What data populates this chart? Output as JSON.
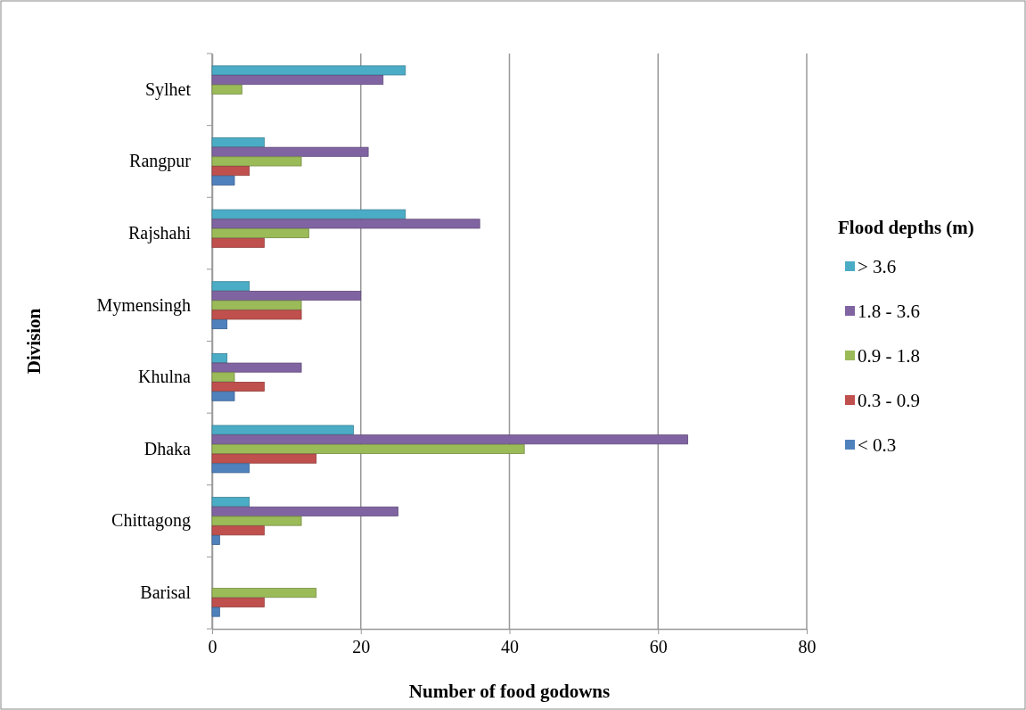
{
  "chart_data": {
    "type": "bar",
    "orientation": "horizontal",
    "xlabel": "Number of food godowns",
    "ylabel": "Division",
    "legend_title": "Flood depths (m)",
    "categories": [
      "Sylhet",
      "Rangpur",
      "Rajshahi",
      "Mymensingh",
      "Khulna",
      "Dhaka",
      "Chittagong",
      "Barisal"
    ],
    "series": [
      {
        "name": "> 3.6",
        "color": "#4bacc6",
        "values": [
          26,
          7,
          26,
          5,
          2,
          19,
          5,
          0
        ]
      },
      {
        "name": "1.8 - 3.6",
        "color": "#8064a2",
        "values": [
          23,
          21,
          36,
          20,
          12,
          64,
          25,
          0
        ]
      },
      {
        "name": "0.9 - 1.8",
        "color": "#9bbb59",
        "values": [
          4,
          12,
          13,
          12,
          3,
          42,
          12,
          14
        ]
      },
      {
        "name": "0.3 - 0.9",
        "color": "#c0504d",
        "values": [
          0,
          5,
          7,
          12,
          7,
          14,
          7,
          7
        ]
      },
      {
        "name": "< 0.3",
        "color": "#4f81bd",
        "values": [
          0,
          3,
          0,
          2,
          3,
          5,
          1,
          1
        ]
      }
    ],
    "xlim": [
      0,
      80
    ],
    "xticks": [
      0,
      20,
      40,
      60,
      80
    ],
    "grid": "x",
    "legend": "right"
  }
}
